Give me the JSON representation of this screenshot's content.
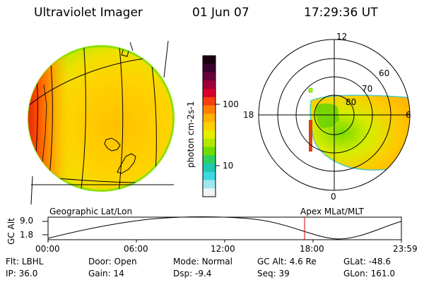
{
  "header": {
    "title": "Ultraviolet Imager",
    "date": "01 Jun 07",
    "time": "17:29:36 UT"
  },
  "colorbar": {
    "unit_label": "photon cm-2s-1",
    "tick_labels": [
      "100",
      "10"
    ],
    "colors": [
      "#1a0010",
      "#3a0030",
      "#6a003c",
      "#a0003a",
      "#d8002a",
      "#f24010",
      "#ff8000",
      "#ffb000",
      "#ffd000",
      "#e6ee00",
      "#b0e800",
      "#70dc00",
      "#30d060",
      "#20c8b0",
      "#40d8e0",
      "#a0e8f0",
      "#f0f4f8"
    ]
  },
  "globe_panel": {
    "label": "Geographic Lat/Lon"
  },
  "polar_panel": {
    "label": "Apex MLat/MLT",
    "lat_labels": [
      "80",
      "70",
      "60"
    ],
    "mlt_labels": [
      "12",
      "18",
      "6",
      "0"
    ]
  },
  "timeline": {
    "ylabel": "GC Alt",
    "yticks": [
      "9.0",
      "1.8"
    ],
    "xticks": [
      "00:00",
      "06:00",
      "12:00",
      "18:00",
      "23:59"
    ],
    "marker_time": "17:29:36",
    "marker_color": "#d00000"
  },
  "footer": {
    "row1": [
      {
        "label": "Flt:",
        "value": "LBHL"
      },
      {
        "label": "Door:",
        "value": "Open"
      },
      {
        "label": "Mode:",
        "value": "Normal"
      },
      {
        "label": "GC Alt:",
        "value": "4.6 Re"
      },
      {
        "label": "GLat:",
        "value": "-48.6"
      }
    ],
    "row2": [
      {
        "label": "IP:",
        "value": "36.0"
      },
      {
        "label": "Gain:",
        "value": "14"
      },
      {
        "label": "Dsp:",
        "value": "-9.4"
      },
      {
        "label": "Seq:",
        "value": "39"
      },
      {
        "label": "GLon:",
        "value": "161.0"
      }
    ]
  }
}
